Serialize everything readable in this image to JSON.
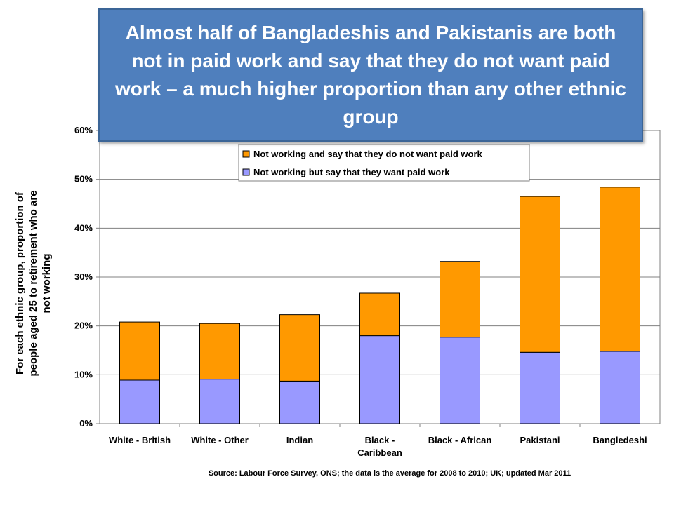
{
  "chart_data": {
    "type": "bar",
    "stacked": true,
    "title": "Almost half of Bangladeshis and Pakistanis are both not in paid work and say that they do not want paid work – a much higher proportion than any other ethnic group",
    "categories": [
      [
        "White - British"
      ],
      [
        "White - Other"
      ],
      [
        "Indian"
      ],
      [
        "Black -",
        "Caribbean"
      ],
      [
        "Black - African"
      ],
      [
        "Pakistani"
      ],
      [
        "Bangledeshi"
      ]
    ],
    "series": [
      {
        "name": "Not working but say that they want paid work",
        "color": "#9999ff",
        "values": [
          8.9,
          9.1,
          8.7,
          18.0,
          17.7,
          14.6,
          14.8
        ]
      },
      {
        "name": "Not working and say that they do not want paid work",
        "color": "#ff9900",
        "values": [
          11.9,
          11.4,
          13.6,
          8.7,
          15.5,
          31.9,
          33.6
        ]
      }
    ],
    "legend_order": [
      1,
      0
    ],
    "legend_position": "top",
    "ylabel_lines": [
      "For each ethnic group, proportion of",
      "people aged 25 to retirement who are",
      "not working"
    ],
    "xlabel": "",
    "ylim": [
      0,
      60
    ],
    "yticks": [
      "0%",
      "10%",
      "20%",
      "30%",
      "40%",
      "50%",
      "60%"
    ],
    "grid": true,
    "source": "Source: Labour Force Survey, ONS; the data is the average for 2008 to 2010; UK; updated Mar 2011"
  }
}
